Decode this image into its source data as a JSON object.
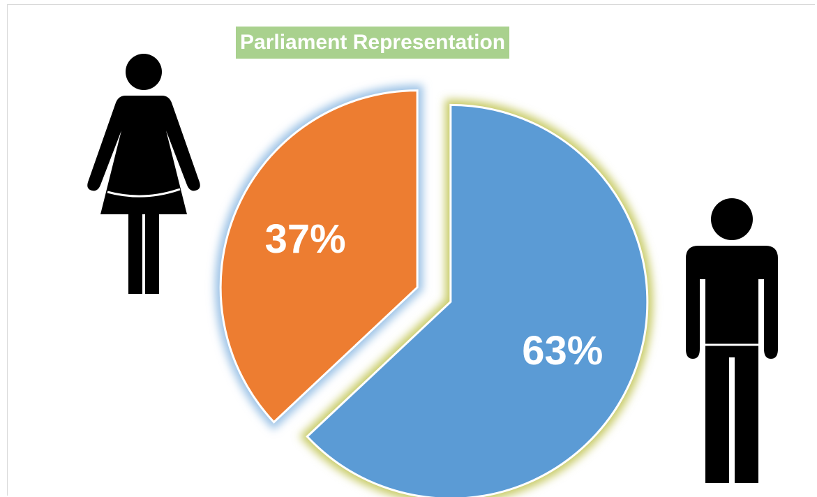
{
  "chart_data": {
    "type": "pie",
    "title": "Parliament Representation",
    "slices": [
      {
        "label_text": "37%",
        "value": 37,
        "color": "#ed7d31",
        "glow": "#9dc3e6"
      },
      {
        "label_text": "63%",
        "value": 63,
        "color": "#5b9bd5",
        "glow": "#c9cc6a"
      }
    ],
    "exploded": true
  },
  "icons": {
    "woman": "woman-icon",
    "man": "man-icon"
  }
}
